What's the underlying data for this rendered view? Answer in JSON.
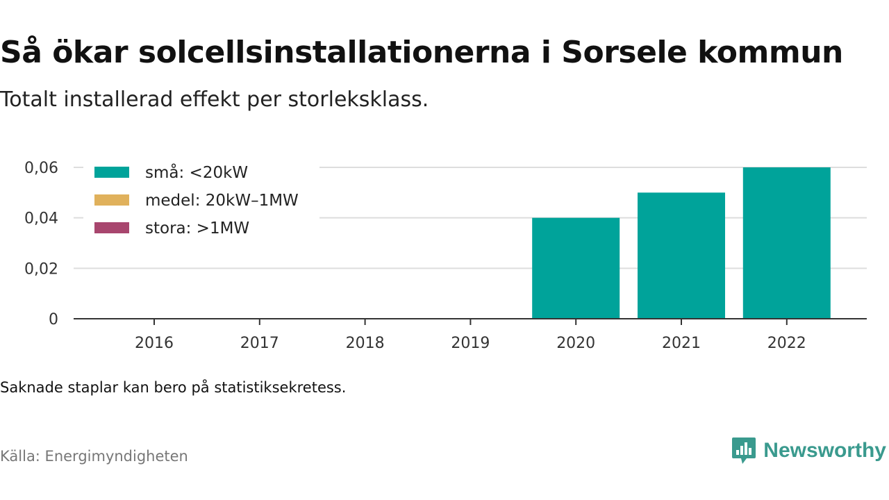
{
  "title": "Så ökar solcellsinstallationerna i Sorsele kommun",
  "subtitle": "Totalt installerad effekt per storleksklass.",
  "note": "Saknade staplar kan bero på statistiksekretess.",
  "source": "Källa: Energimyndigheten",
  "brand": {
    "name": "Newsworthy",
    "icon": "newsworthy-logo-icon",
    "color": "#3a9a8e"
  },
  "chart_data": {
    "type": "bar",
    "stacked": true,
    "categories": [
      "2016",
      "2017",
      "2018",
      "2019",
      "2020",
      "2021",
      "2022"
    ],
    "series": [
      {
        "name": "små: <20kW",
        "color": "#00a39a",
        "values": [
          0,
          0,
          0,
          0,
          0.04,
          0.05,
          0.06
        ]
      },
      {
        "name": "medel: 20kW–1MW",
        "color": "#e0b15c",
        "values": [
          0,
          0,
          0,
          0,
          0,
          0,
          0
        ]
      },
      {
        "name": "stora: >1MW",
        "color": "#a8466e",
        "values": [
          0,
          0,
          0,
          0,
          0,
          0,
          0
        ]
      }
    ],
    "ylim": [
      0,
      0.06
    ],
    "yticks": [
      0,
      0.02,
      0.04,
      0.06
    ],
    "ytick_labels": [
      "0",
      "0,02",
      "0,04",
      "0,06"
    ],
    "grid": true,
    "legend_position": "top-left"
  }
}
